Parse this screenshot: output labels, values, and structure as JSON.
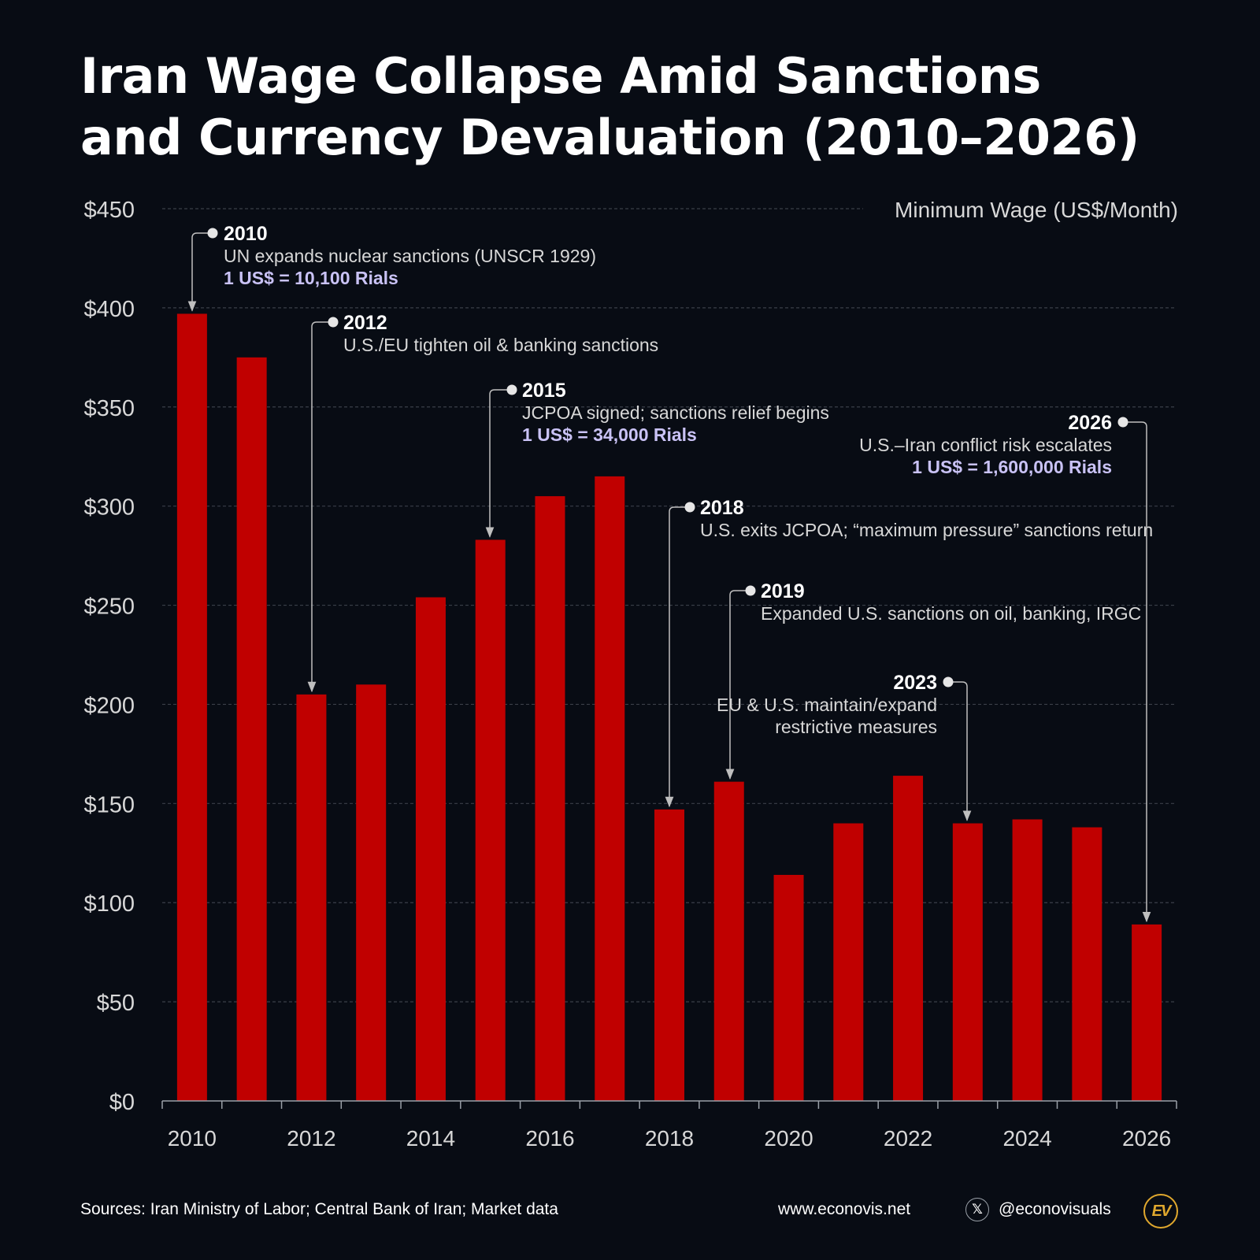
{
  "chart_data": {
    "type": "bar",
    "title": [
      "Iran Wage Collapse Amid Sanctions",
      "and Currency Devaluation (2010–2026)"
    ],
    "series_label": "Minimum Wage (US$/Month)",
    "ylabel": "Minimum Wage (US$/Month)",
    "xlabel": "",
    "ylim": [
      0,
      450
    ],
    "yticks": [
      0,
      50,
      100,
      150,
      200,
      250,
      300,
      350,
      400,
      450
    ],
    "ytick_labels": [
      "$0",
      "$50",
      "$100",
      "$150",
      "$200",
      "$250",
      "$300",
      "$350",
      "$400",
      "$450"
    ],
    "categories": [
      2010,
      2011,
      2012,
      2013,
      2014,
      2015,
      2016,
      2017,
      2018,
      2019,
      2020,
      2021,
      2022,
      2023,
      2024,
      2025,
      2026
    ],
    "values": [
      397,
      375,
      205,
      210,
      254,
      283,
      305,
      315,
      147,
      161,
      114,
      140,
      164,
      140,
      142,
      138,
      89
    ],
    "xtick_labels": [
      "2010",
      "2012",
      "2014",
      "2016",
      "2018",
      "2020",
      "2022",
      "2024",
      "2026"
    ],
    "bar_color": "#c00000",
    "grid": true,
    "annotations": [
      {
        "year": "2010",
        "lines": [
          "UN expands nuclear sanctions (UNSCR 1929)"
        ],
        "rate": "1 US$ = 10,100 Rials",
        "align": "left"
      },
      {
        "year": "2012",
        "lines": [
          "U.S./EU tighten oil & banking sanctions"
        ],
        "rate": null,
        "align": "left"
      },
      {
        "year": "2015",
        "lines": [
          "JCPOA signed; sanctions relief begins"
        ],
        "rate": "1 US$ = 34,000 Rials",
        "align": "left"
      },
      {
        "year": "2018",
        "lines": [
          "U.S. exits JCPOA; “maximum pressure” sanctions return"
        ],
        "rate": null,
        "align": "left"
      },
      {
        "year": "2019",
        "lines": [
          "Expanded U.S. sanctions on oil, banking, IRGC"
        ],
        "rate": null,
        "align": "left"
      },
      {
        "year": "2023",
        "lines": [
          "EU & U.S. maintain/expand",
          "restrictive measures"
        ],
        "rate": null,
        "align": "right"
      },
      {
        "year": "2026",
        "lines": [
          "U.S.–Iran conflict risk escalates"
        ],
        "rate": "1 US$ = 1,600,000 Rials",
        "align": "right"
      }
    ]
  },
  "colors": {
    "background": "#080c14",
    "bar": "#c00000",
    "grid": "#3a3f48",
    "text": "#ffffff",
    "muted_text": "#d8d8d8",
    "rate_text": "#c9c2f5",
    "connector": "#bfbfbf",
    "logo": "#e0a82e"
  },
  "footer": {
    "sources": "Sources: Iran Ministry of Labor; Central Bank of Iran; Market data",
    "website": "www.econovis.net",
    "handle": "@econovisuals",
    "logo_text": "EV",
    "x_icon": "x-logo-icon"
  }
}
